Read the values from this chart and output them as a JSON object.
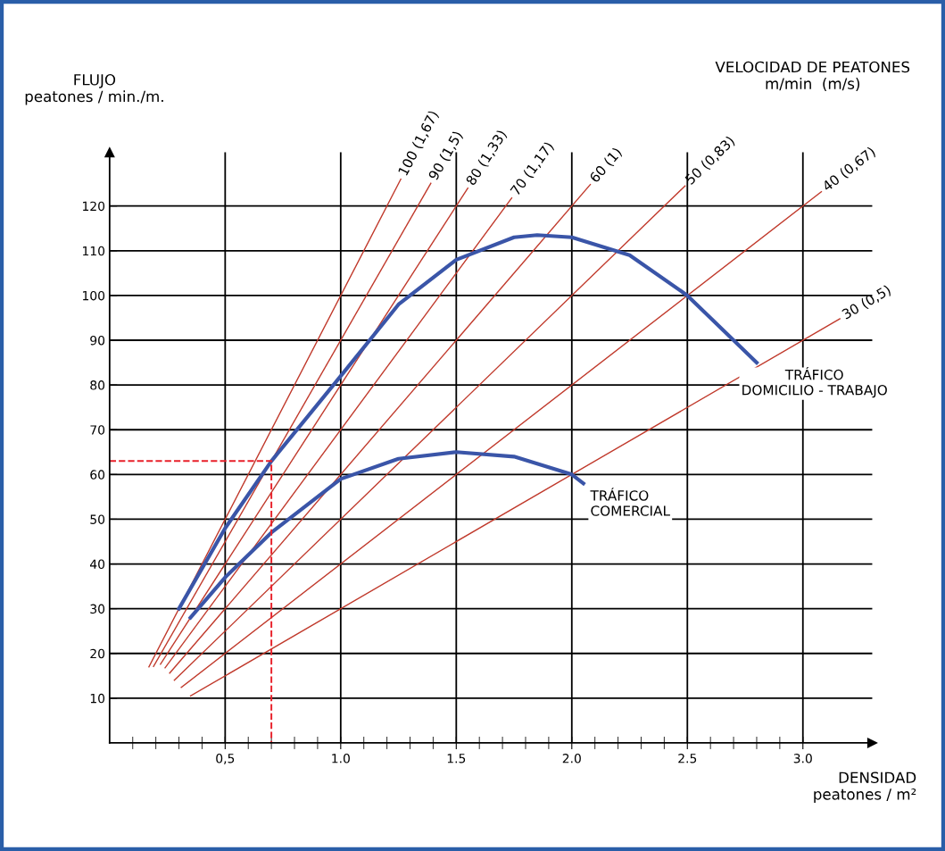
{
  "chart_data": {
    "type": "line",
    "ylabel": "FLUJO\npeatones / min./m.",
    "xlabel": "DENSIDAD\npeatones / m²",
    "legend_title": "VELOCIDAD DE PEATONES\nm/min  (m/s)",
    "xlim": [
      0,
      3.3
    ],
    "ylim": [
      0,
      132
    ],
    "xticks": [
      {
        "value": 0.1,
        "label": null
      },
      {
        "value": 0.2,
        "label": null
      },
      {
        "value": 0.3,
        "label": null
      },
      {
        "value": 0.4,
        "label": null
      },
      {
        "value": 0.5,
        "label": "0,5"
      },
      {
        "value": 0.6,
        "label": null
      },
      {
        "value": 0.7,
        "label": null
      },
      {
        "value": 0.8,
        "label": null
      },
      {
        "value": 0.9,
        "label": null
      },
      {
        "value": 1.0,
        "label": "1.0"
      },
      {
        "value": 1.1,
        "label": null
      },
      {
        "value": 1.2,
        "label": null
      },
      {
        "value": 1.3,
        "label": null
      },
      {
        "value": 1.4,
        "label": null
      },
      {
        "value": 1.5,
        "label": "1.5"
      },
      {
        "value": 1.6,
        "label": null
      },
      {
        "value": 1.7,
        "label": null
      },
      {
        "value": 1.8,
        "label": null
      },
      {
        "value": 1.9,
        "label": null
      },
      {
        "value": 2.0,
        "label": "2.0"
      },
      {
        "value": 2.1,
        "label": null
      },
      {
        "value": 2.2,
        "label": null
      },
      {
        "value": 2.3,
        "label": null
      },
      {
        "value": 2.4,
        "label": null
      },
      {
        "value": 2.5,
        "label": "2.5"
      },
      {
        "value": 2.6,
        "label": null
      },
      {
        "value": 2.7,
        "label": null
      },
      {
        "value": 2.8,
        "label": null
      },
      {
        "value": 2.9,
        "label": null
      },
      {
        "value": 3.0,
        "label": "3.0"
      }
    ],
    "yticks": [
      10,
      20,
      30,
      40,
      50,
      60,
      70,
      80,
      90,
      100,
      110,
      120
    ],
    "grid": true,
    "legend": false,
    "marker": "none",
    "series": [
      {
        "name": "100 (1,67)",
        "color": "#c0392b",
        "x": [
          0.17,
          1.26
        ],
        "values": [
          17,
          126
        ]
      },
      {
        "name": "90 (1,5)",
        "color": "#c0392b",
        "x": [
          0.19,
          1.39
        ],
        "values": [
          17.1,
          125.1
        ]
      },
      {
        "name": "80 (1,33)",
        "color": "#c0392b",
        "x": [
          0.22,
          1.55
        ],
        "values": [
          17.6,
          124
        ]
      },
      {
        "name": "70 (1,17)",
        "color": "#c0392b",
        "x": [
          0.24,
          1.74
        ],
        "values": [
          16.8,
          121.8
        ]
      },
      {
        "name": "60 (1)",
        "color": "#c0392b",
        "x": [
          0.26,
          2.08
        ],
        "values": [
          15.6,
          124.8
        ]
      },
      {
        "name": "50 (0,83)",
        "color": "#c0392b",
        "x": [
          0.28,
          2.49
        ],
        "values": [
          14,
          124.5
        ]
      },
      {
        "name": "40 (0,67)",
        "color": "#c0392b",
        "x": [
          0.31,
          3.08
        ],
        "values": [
          12.4,
          123.2
        ]
      },
      {
        "name": "30 (0,5)",
        "color": "#c0392b",
        "x": [
          0.35,
          3.16
        ],
        "values": [
          10.5,
          94.8
        ]
      },
      {
        "name": "TRÁFICO\nDOMICILIO - TRABAJO",
        "color": "#3a55a8",
        "x": [
          0.3,
          0.5,
          0.7,
          1.0,
          1.25,
          1.5,
          1.75,
          1.85,
          2.0,
          2.25,
          2.5,
          2.8
        ],
        "values": [
          30,
          48,
          63,
          82,
          98,
          108,
          113,
          113.5,
          113,
          109,
          100,
          85
        ]
      },
      {
        "name": "TRÁFICO\nCOMERCIAL",
        "color": "#3a55a8",
        "x": [
          0.35,
          0.5,
          0.7,
          1.0,
          1.25,
          1.5,
          1.75,
          2.0,
          2.05
        ],
        "values": [
          28,
          37,
          47,
          59,
          63.5,
          65,
          64,
          60,
          58
        ]
      },
      {
        "color": "#e8202a",
        "line_style": "dashed",
        "x": [
          0,
          0.7,
          0.7
        ],
        "values": [
          63,
          63,
          0
        ]
      }
    ]
  }
}
